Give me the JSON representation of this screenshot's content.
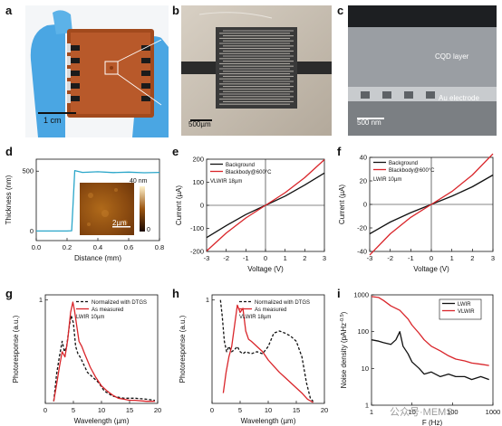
{
  "panels": {
    "a": {
      "label": "a",
      "scale_bar": "1 cm"
    },
    "b": {
      "label": "b",
      "scale_bar": "500µm"
    },
    "c": {
      "label": "c",
      "scale_bar": "500 nm",
      "layer_top": "CQD layer",
      "layer_bottom": "Au electrode"
    },
    "d": {
      "label": "d",
      "xlabel": "Distance (mm)",
      "ylabel": "Thickness (nm)",
      "inset_scale": "2µm",
      "inset_colorbar_top": "40 nm",
      "inset_colorbar_bottom": "0"
    },
    "e": {
      "label": "e",
      "xlabel": "Voltage (V)",
      "ylabel": "Current (µA)",
      "note": "VLWIR 18µm"
    },
    "f": {
      "label": "f",
      "xlabel": "Voltage (V)",
      "ylabel": "Current (µA)",
      "note": "LWIR 10µm"
    },
    "g": {
      "label": "g",
      "xlabel": "Wavelength (µm)",
      "ylabel": "Photoresponse (a.u.)",
      "note": "LWIR 10µm"
    },
    "h": {
      "label": "h",
      "xlabel": "Wavelength (µm)",
      "ylabel": "Photoresponse (a.u.)",
      "note": "VLWIR 18µm"
    },
    "i": {
      "label": "i",
      "xlabel": "F (Hz)",
      "ylabel": "Noise density (pA/Hz^0.5)",
      "ylabel_main": "Noise density (pAHz",
      "ylabel_sup": "-0.5",
      "ylabel_end": ")"
    }
  },
  "watermark": "公众号·MEMS",
  "colors": {
    "black": "#111111",
    "red": "#d9252a",
    "cyan": "#2aa6c9",
    "dashed": "#111111"
  },
  "chart_data": [
    {
      "id": "d",
      "type": "line",
      "xlabel": "Distance (mm)",
      "ylabel": "Thickness (nm)",
      "xlim": [
        0,
        0.8
      ],
      "ylim": [
        -80,
        600
      ],
      "xticks": [
        "0.0",
        "0.2",
        "0.4",
        "0.6",
        "0.8"
      ],
      "xtick_values": [
        0,
        0.2,
        0.4,
        0.6,
        0.8
      ],
      "yticks": [
        "0",
        "500"
      ],
      "ytick_values": [
        0,
        500
      ],
      "series": [
        {
          "color": "#2aa6c9",
          "x": [
            0,
            0.05,
            0.1,
            0.15,
            0.2,
            0.23,
            0.24,
            0.25,
            0.3,
            0.4,
            0.5,
            0.6,
            0.7,
            0.8
          ],
          "y": [
            0,
            0,
            0,
            0,
            0,
            2,
            250,
            505,
            490,
            495,
            488,
            492,
            487,
            490
          ]
        }
      ]
    },
    {
      "id": "e",
      "type": "line",
      "xlabel": "Voltage (V)",
      "ylabel": "Current (µA)",
      "xlim": [
        -3,
        3
      ],
      "ylim": [
        -200,
        200
      ],
      "xticks": [
        "-3",
        "-2",
        "-1",
        "0",
        "1",
        "2",
        "3"
      ],
      "xtick_values": [
        -3,
        -2,
        -1,
        0,
        1,
        2,
        3
      ],
      "yticks": [
        "-200",
        "-100",
        "0",
        "100",
        "200"
      ],
      "ytick_values": [
        -200,
        -100,
        0,
        100,
        200
      ],
      "legend": "top-left",
      "series": [
        {
          "name": "Background",
          "color": "#111111",
          "x": [
            -3,
            -2,
            -1,
            0,
            1,
            2,
            3
          ],
          "y": [
            -140,
            -88,
            -40,
            0,
            40,
            88,
            140
          ]
        },
        {
          "name": "Blackbody@600°C",
          "color": "#d9252a",
          "x": [
            -3,
            -2,
            -1,
            0,
            1,
            2,
            3
          ],
          "y": [
            -198,
            -120,
            -55,
            0,
            55,
            120,
            198
          ]
        }
      ]
    },
    {
      "id": "f",
      "type": "line",
      "xlabel": "Voltage (V)",
      "ylabel": "Current (µA)",
      "xlim": [
        -3,
        3
      ],
      "ylim": [
        -40,
        40
      ],
      "xticks": [
        "-3",
        "-2",
        "-1",
        "0",
        "1",
        "2",
        "3"
      ],
      "xtick_values": [
        -3,
        -2,
        -1,
        0,
        1,
        2,
        3
      ],
      "yticks": [
        "-40",
        "-20",
        "0",
        "20",
        "40"
      ],
      "ytick_values": [
        -40,
        -20,
        0,
        20,
        40
      ],
      "legend": "top-left",
      "series": [
        {
          "name": "Background",
          "color": "#111111",
          "x": [
            -3,
            -2,
            -1,
            0,
            1,
            2,
            3
          ],
          "y": [
            -25,
            -15,
            -7,
            0,
            7,
            15,
            25
          ]
        },
        {
          "name": "Blackbody@600°C",
          "color": "#d9252a",
          "x": [
            -3,
            -2,
            -1,
            0,
            1,
            2,
            3
          ],
          "y": [
            -43,
            -25,
            -11,
            0,
            11,
            25,
            43
          ]
        }
      ]
    },
    {
      "id": "g",
      "type": "line",
      "xlabel": "Wavelength (µm)",
      "ylabel": "Photoresponse (a.u.)",
      "xlim": [
        0,
        20
      ],
      "ylim": [
        0,
        1.05
      ],
      "xticks": [
        "0",
        "5",
        "10",
        "15",
        "20"
      ],
      "xtick_values": [
        0,
        5,
        10,
        15,
        20
      ],
      "yticks": [
        "1"
      ],
      "ytick_values": [
        1
      ],
      "legend": "top-right",
      "series": [
        {
          "name": "Normalized with DTGS",
          "color": "#111111",
          "dashed": true,
          "x": [
            1.5,
            2,
            2.5,
            3,
            3.4,
            3.8,
            4.2,
            4.6,
            5,
            5.4,
            5.8,
            6.2,
            6.8,
            7.5,
            8.5,
            9.5,
            10.5,
            12,
            14,
            16,
            18,
            19.5
          ],
          "y": [
            0.02,
            0.28,
            0.45,
            0.6,
            0.5,
            0.55,
            0.72,
            0.85,
            0.78,
            0.55,
            0.48,
            0.45,
            0.38,
            0.3,
            0.25,
            0.2,
            0.12,
            0.07,
            0.05,
            0.05,
            0.04,
            0.03
          ]
        },
        {
          "name": "As measured",
          "color": "#d9252a",
          "x": [
            1.5,
            2,
            2.5,
            3,
            3.5,
            4,
            4.5,
            4.9,
            5.2,
            5.6,
            6,
            6.5,
            7,
            8,
            9,
            10,
            11,
            12,
            13,
            14,
            15,
            16,
            18,
            19.5
          ],
          "y": [
            0.02,
            0.18,
            0.35,
            0.5,
            0.45,
            0.62,
            0.88,
            0.98,
            0.9,
            0.75,
            0.6,
            0.55,
            0.48,
            0.35,
            0.25,
            0.17,
            0.12,
            0.08,
            0.05,
            0.04,
            0.03,
            0.03,
            0.02,
            0.02
          ]
        }
      ]
    },
    {
      "id": "h",
      "type": "line",
      "xlabel": "Wavelength (µm)",
      "ylabel": "Photoresponse (a.u.)",
      "xlim": [
        0,
        20
      ],
      "ylim": [
        0,
        1.05
      ],
      "xticks": [
        "0",
        "5",
        "10",
        "15",
        "20"
      ],
      "xtick_values": [
        0,
        5,
        10,
        15,
        20
      ],
      "yticks": [
        "1"
      ],
      "ytick_values": [
        1
      ],
      "legend": "top-right",
      "series": [
        {
          "name": "Normalized with DTGS",
          "color": "#111111",
          "dashed": true,
          "x": [
            1.5,
            1.8,
            2.2,
            2.6,
            3,
            3.5,
            4,
            4.5,
            5,
            5.5,
            6,
            7,
            8,
            9,
            10,
            11,
            12,
            13,
            14,
            15,
            16,
            16.8,
            17.5,
            18
          ],
          "y": [
            1.0,
            0.85,
            0.6,
            0.5,
            0.55,
            0.5,
            0.52,
            0.55,
            0.5,
            0.48,
            0.5,
            0.48,
            0.5,
            0.48,
            0.55,
            0.68,
            0.7,
            0.68,
            0.65,
            0.6,
            0.45,
            0.2,
            0.05,
            0.02
          ]
        },
        {
          "name": "As measured",
          "color": "#d9252a",
          "x": [
            2,
            2.5,
            3,
            3.5,
            4,
            4.5,
            5,
            5.5,
            6,
            6.5,
            7,
            8,
            9,
            10,
            11,
            12,
            13,
            14,
            15,
            16,
            17,
            18
          ],
          "y": [
            0.1,
            0.3,
            0.45,
            0.55,
            0.75,
            0.95,
            0.88,
            0.92,
            0.7,
            0.62,
            0.6,
            0.55,
            0.5,
            0.42,
            0.36,
            0.3,
            0.25,
            0.2,
            0.15,
            0.1,
            0.04,
            0.01
          ]
        }
      ]
    },
    {
      "id": "i",
      "type": "line",
      "yscale": "log",
      "xscale": "log",
      "xlabel": "F (Hz)",
      "ylabel": "Noise density (pA/Hz^0.5)",
      "xlim": [
        1,
        1000
      ],
      "ylim": [
        1,
        1000
      ],
      "xticks": [
        "1",
        "10",
        "100",
        "1000"
      ],
      "xtick_values": [
        1,
        10,
        100,
        1000
      ],
      "yticks": [
        "1",
        "10",
        "100",
        "1000"
      ],
      "ytick_values": [
        1,
        10,
        100,
        1000
      ],
      "legend": "top-right",
      "series": [
        {
          "name": "LWIR",
          "color": "#111111",
          "x": [
            1,
            1.5,
            2,
            3,
            4,
            5,
            6,
            8,
            10,
            15,
            20,
            30,
            50,
            80,
            120,
            200,
            300,
            500,
            800
          ],
          "y": [
            60,
            55,
            50,
            45,
            60,
            100,
            40,
            25,
            15,
            10,
            7,
            8,
            6,
            7,
            6,
            6,
            5,
            6,
            5
          ]
        },
        {
          "name": "VLWIR",
          "color": "#d9252a",
          "x": [
            1,
            1.5,
            2,
            3,
            5,
            8,
            10,
            15,
            20,
            30,
            50,
            80,
            120,
            200,
            300,
            500,
            800
          ],
          "y": [
            900,
            850,
            700,
            500,
            380,
            220,
            150,
            90,
            60,
            40,
            30,
            22,
            18,
            16,
            14,
            13,
            12
          ]
        }
      ]
    }
  ]
}
